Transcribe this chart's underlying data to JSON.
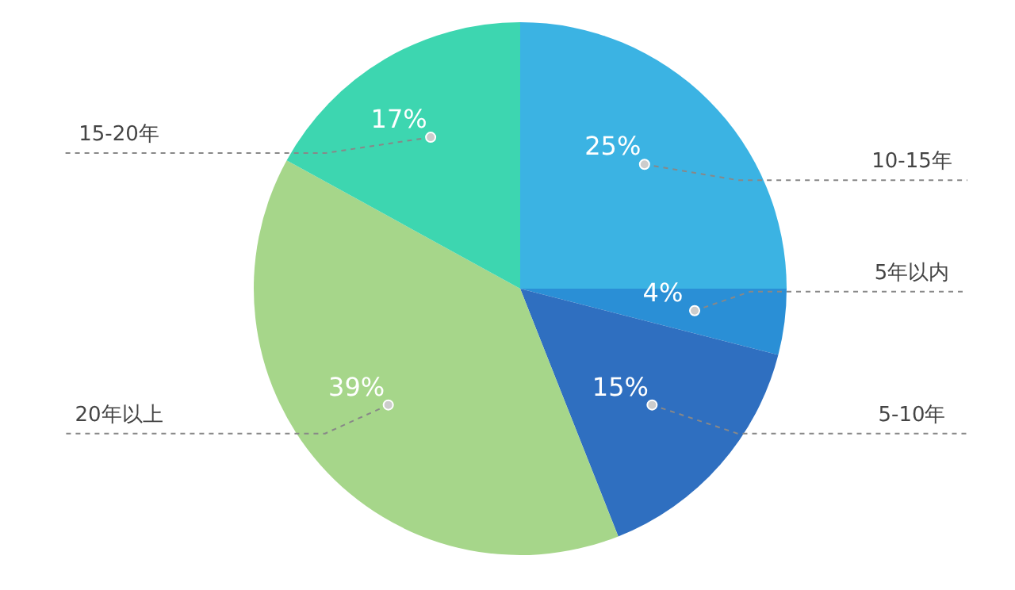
{
  "chart_data": {
    "type": "pie",
    "categories": [
      "10-15年",
      "5年以内",
      "5-10年",
      "20年以上",
      "15-20年"
    ],
    "values": [
      25,
      4,
      15,
      39,
      17
    ],
    "colors": [
      "#3bb3e3",
      "#2a8fd6",
      "#2f6fc0",
      "#a6d68a",
      "#3dd6b0"
    ],
    "value_labels": [
      "25%",
      "4%",
      "15%",
      "39%",
      "17%"
    ]
  }
}
